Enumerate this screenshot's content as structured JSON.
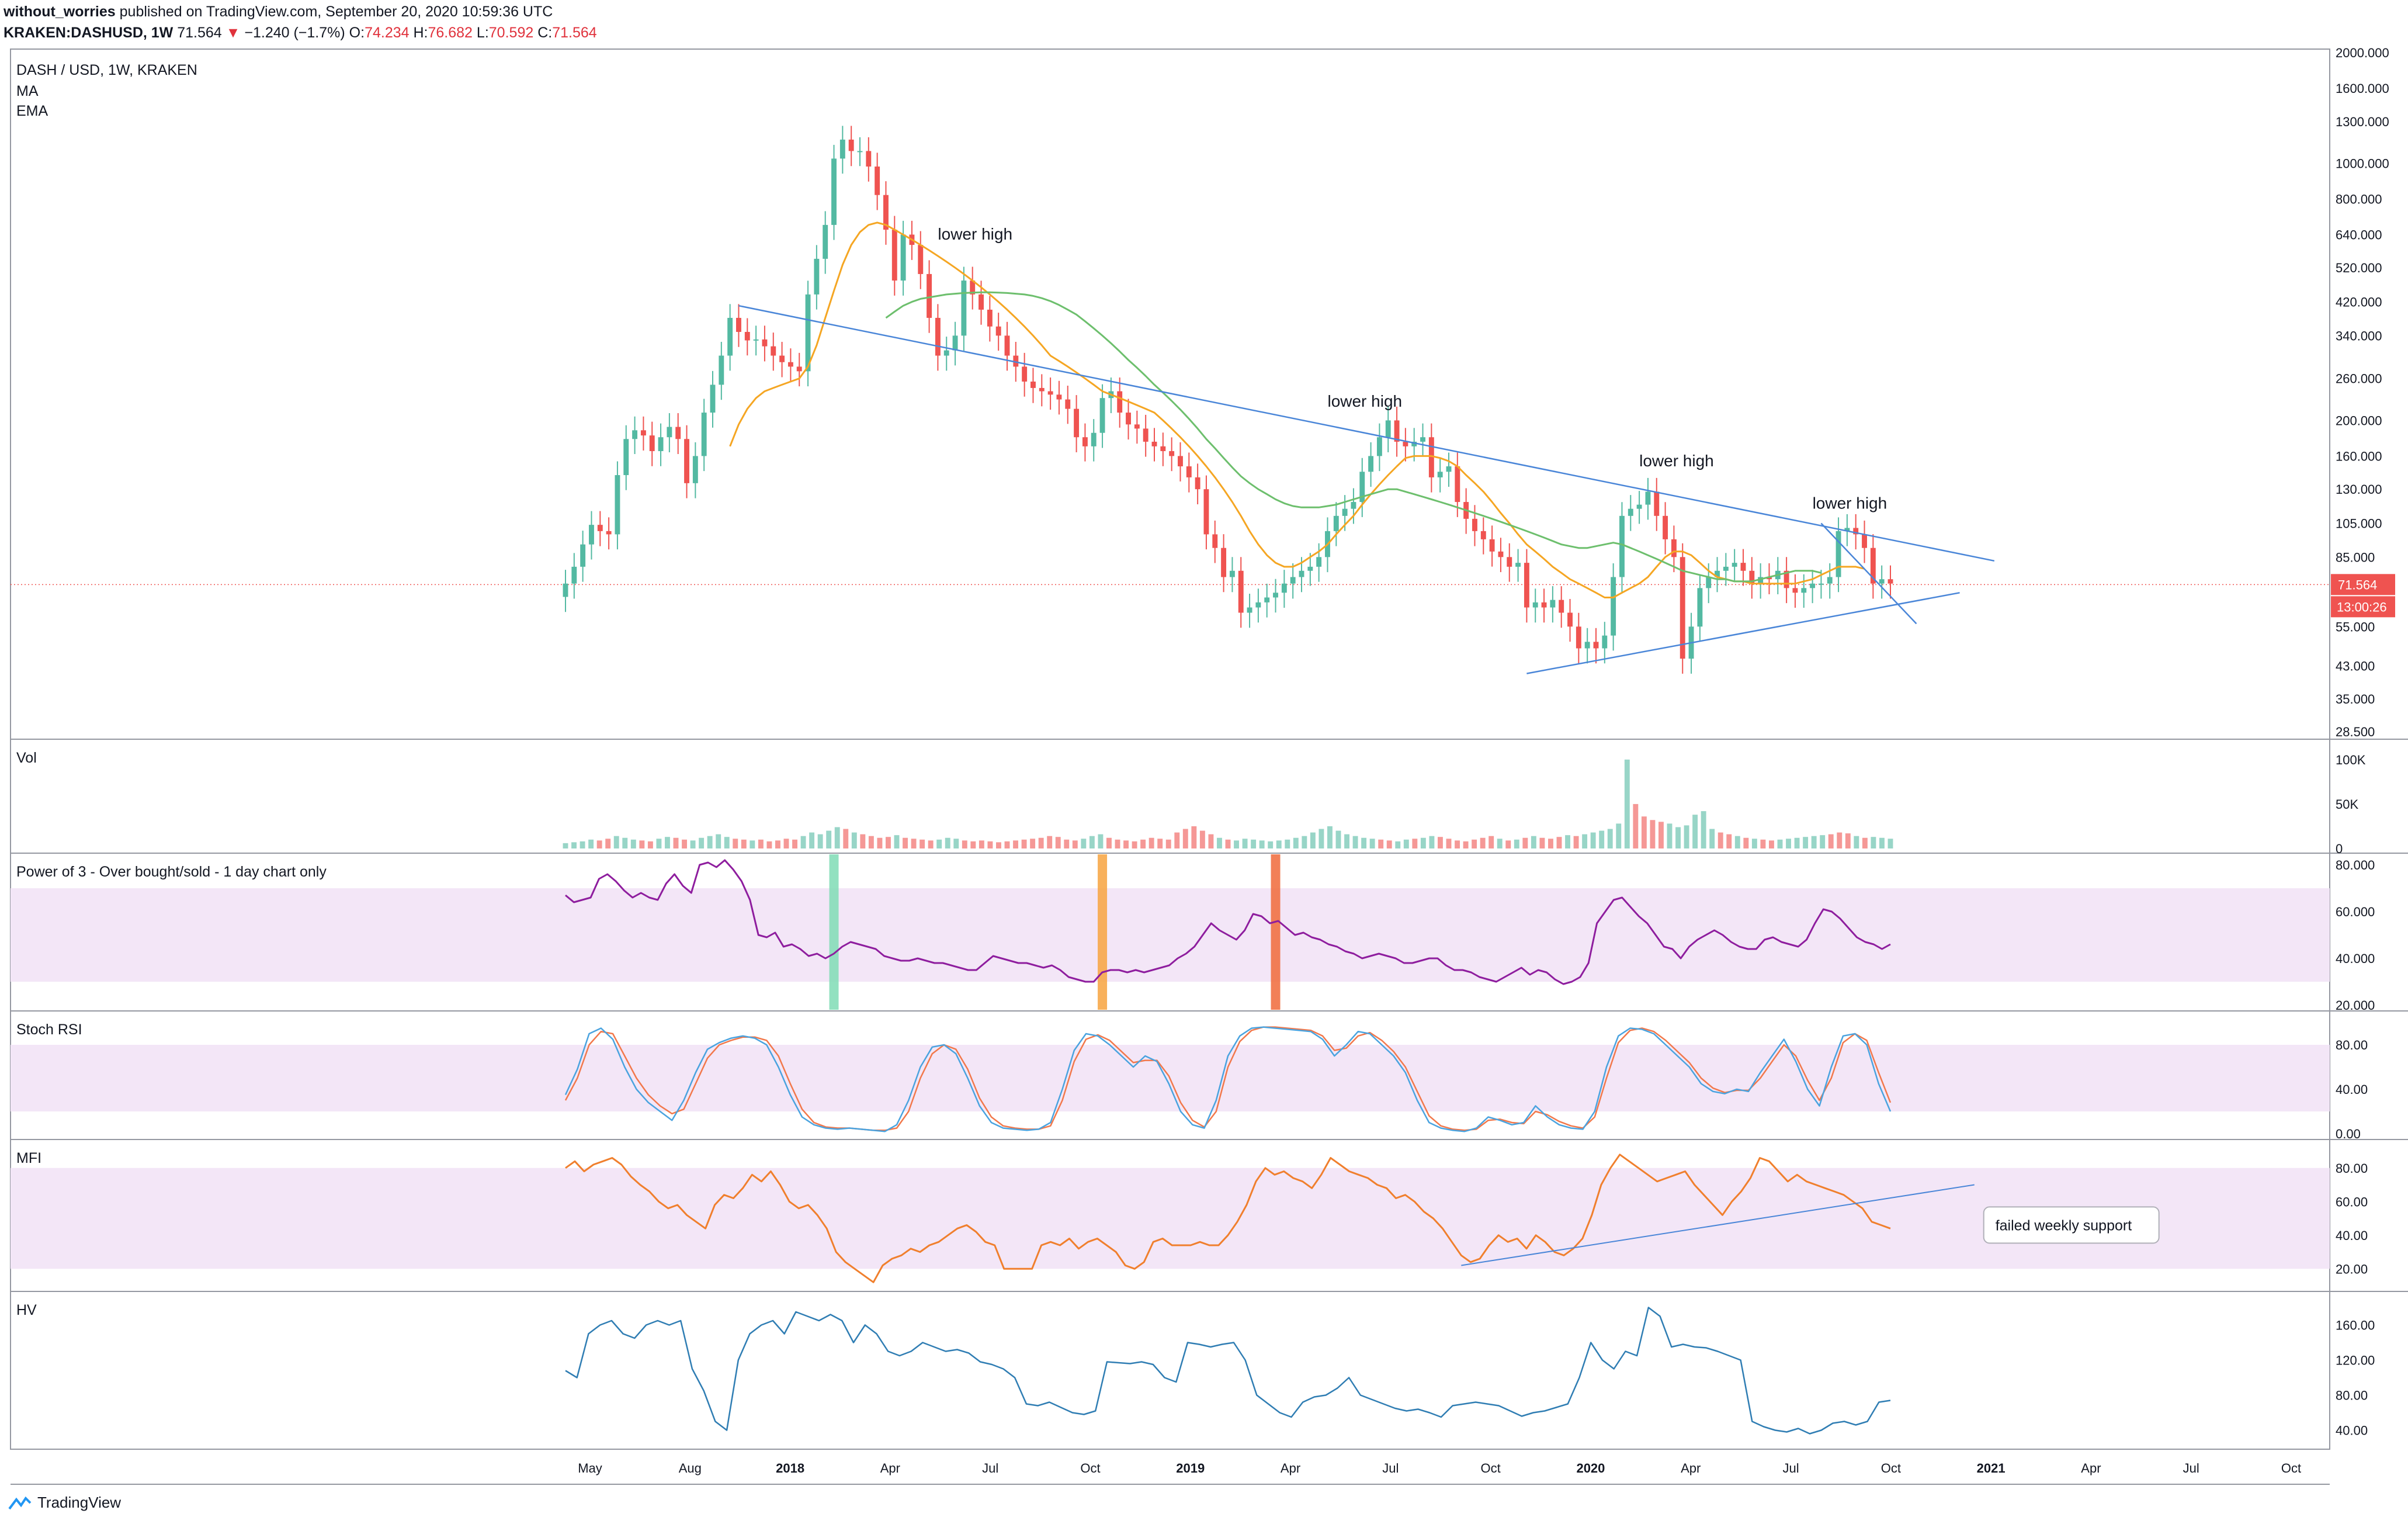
{
  "header": {
    "author": "without_worries",
    "published": "published on TradingView.com, September 20, 2020 10:59:36 UTC",
    "symbol": "KRAKEN:DASHUSD, 1W",
    "last": "71.564",
    "change": "−1.240 (−1.7%)",
    "o_label": "O:",
    "o": "74.234",
    "h_label": "H:",
    "h": "76.682",
    "l_label": "L:",
    "l": "70.592",
    "c_label": "C:",
    "c": "71.564"
  },
  "footer": {
    "brand": "TradingView",
    "logo_icon": "tradingview-logo-icon"
  },
  "colors": {
    "up": "#53b9a2",
    "down": "#ef5350",
    "ma": "#f5a623",
    "ema": "#6dbf6d",
    "trend": "#4a86d8",
    "power": "#8e1d9e",
    "stoch_k": "#4aa3df",
    "stoch_d": "#f2784b",
    "mfi": "#f07f2d",
    "hv": "#2f7db3",
    "band": "#f3e6f7",
    "price_tag": "#ef5350"
  },
  "chart_data": [
    {
      "type": "candlestick",
      "title": "DASH / USD, 1W, KRAKEN",
      "legend": [
        "MA",
        "EMA"
      ],
      "scale": "log",
      "y_ticks": [
        "2000.000",
        "1600.000",
        "1300.000",
        "1000.000",
        "800.000",
        "640.000",
        "520.000",
        "420.000",
        "340.000",
        "260.000",
        "200.000",
        "160.000",
        "130.000",
        "105.000",
        "85.000",
        "55.000",
        "43.000",
        "35.000",
        "28.500"
      ],
      "x_ticks": [
        "May",
        "Aug",
        "2018",
        "Apr",
        "Jul",
        "Oct",
        "2019",
        "Apr",
        "Jul",
        "Oct",
        "2020",
        "Apr",
        "Jul",
        "Oct",
        "2021",
        "Apr",
        "Jul",
        "Oct"
      ],
      "last_price": "71.564",
      "countdown": "13:00:26",
      "candles_close": [
        72,
        80,
        92,
        104,
        100,
        98,
        142,
        178,
        188,
        182,
        165,
        180,
        192,
        178,
        135,
        160,
        210,
        250,
        300,
        380,
        348,
        330,
        332,
        318,
        300,
        288,
        280,
        272,
        440,
        550,
        680,
        1030,
        1160,
        1080,
        1080,
        980,
        820,
        660,
        480,
        640,
        600,
        500,
        380,
        300,
        310,
        340,
        480,
        440,
        400,
        360,
        340,
        300,
        280,
        255,
        245,
        240,
        235,
        228,
        215,
        180,
        170,
        185,
        230,
        240,
        210,
        195,
        190,
        175,
        170,
        165,
        160,
        150,
        140,
        130,
        98,
        90,
        75,
        78,
        60,
        62,
        64,
        66,
        68,
        72,
        75,
        78,
        80,
        85,
        100,
        110,
        115,
        120,
        145,
        160,
        180,
        200,
        175,
        170,
        175,
        180,
        140,
        145,
        150,
        120,
        108,
        100,
        95,
        88,
        85,
        80,
        82,
        62,
        64,
        62,
        65,
        60,
        55,
        48,
        50,
        48,
        52,
        75,
        110,
        115,
        118,
        128,
        110,
        95,
        85,
        45,
        55,
        70,
        75,
        78,
        80,
        82,
        78,
        72,
        75,
        74,
        78,
        70,
        68,
        70,
        72,
        72,
        75,
        100,
        102,
        98,
        90,
        72,
        74,
        72
      ],
      "ma_values": [
        null,
        null,
        null,
        null,
        null,
        null,
        null,
        null,
        null,
        null,
        null,
        null,
        null,
        null,
        null,
        null,
        null,
        null,
        null,
        170,
        195,
        215,
        230,
        240,
        245,
        250,
        255,
        260,
        280,
        320,
        380,
        450,
        530,
        600,
        650,
        680,
        690,
        680,
        660,
        640,
        620,
        600,
        580,
        560,
        540,
        520,
        500,
        480,
        460,
        440,
        420,
        400,
        380,
        360,
        340,
        320,
        300,
        290,
        280,
        270,
        260,
        250,
        240,
        235,
        230,
        225,
        220,
        215,
        210,
        200,
        190,
        180,
        170,
        160,
        150,
        140,
        130,
        120,
        110,
        100,
        92,
        86,
        82,
        80,
        80,
        82,
        85,
        88,
        92,
        98,
        104,
        110,
        118,
        126,
        134,
        142,
        150,
        158,
        160,
        160,
        160,
        158,
        155,
        150,
        142,
        135,
        128,
        120,
        112,
        105,
        98,
        92,
        88,
        84,
        80,
        77,
        74,
        72,
        70,
        68,
        66,
        66,
        68,
        70,
        72,
        75,
        80,
        85,
        88,
        88,
        86,
        82,
        78,
        75,
        74,
        73,
        73,
        72,
        72,
        72,
        72,
        72,
        72,
        73,
        74,
        76,
        78,
        80,
        80,
        80,
        79
      ],
      "ema_values": [
        null,
        null,
        null,
        null,
        null,
        null,
        null,
        null,
        null,
        null,
        null,
        null,
        null,
        null,
        null,
        null,
        null,
        null,
        null,
        null,
        null,
        null,
        null,
        null,
        null,
        null,
        null,
        null,
        null,
        null,
        null,
        null,
        null,
        null,
        null,
        null,
        null,
        380,
        395,
        410,
        420,
        428,
        432,
        436,
        440,
        442,
        444,
        445,
        446,
        446,
        445,
        444,
        442,
        440,
        436,
        430,
        422,
        412,
        400,
        388,
        372,
        356,
        340,
        324,
        308,
        292,
        278,
        264,
        250,
        238,
        226,
        214,
        202,
        190,
        178,
        168,
        158,
        149,
        141,
        135,
        130,
        126,
        122,
        119,
        117,
        116,
        116,
        116,
        117,
        118,
        120,
        122,
        124,
        126,
        128,
        130,
        130,
        128,
        126,
        124,
        122,
        120,
        118,
        116,
        114,
        112,
        110,
        108,
        106,
        104,
        102,
        100,
        98,
        96,
        94,
        92,
        91,
        90,
        90,
        91,
        92,
        93,
        92,
        90,
        88,
        86,
        84,
        82,
        80,
        78,
        77,
        76,
        75,
        74,
        74,
        73,
        73,
        73,
        74,
        75,
        76,
        77,
        78,
        78,
        78,
        77
      ]
    },
    {
      "type": "bar",
      "title": "Vol",
      "y_ticks": [
        "100K",
        "50K",
        "0"
      ],
      "values": [
        6,
        7,
        8,
        10,
        9,
        11,
        14,
        12,
        10,
        9,
        8,
        11,
        13,
        12,
        10,
        9,
        12,
        14,
        16,
        13,
        11,
        10,
        9,
        10,
        8,
        9,
        11,
        10,
        14,
        18,
        16,
        20,
        24,
        22,
        18,
        16,
        14,
        12,
        13,
        15,
        12,
        11,
        10,
        9,
        10,
        12,
        11,
        9,
        8,
        9,
        8,
        7,
        8,
        9,
        10,
        11,
        12,
        14,
        13,
        10,
        9,
        11,
        14,
        16,
        12,
        10,
        9,
        8,
        10,
        12,
        11,
        10,
        18,
        22,
        25,
        20,
        16,
        12,
        10,
        9,
        11,
        10,
        9,
        8,
        9,
        10,
        12,
        14,
        18,
        22,
        25,
        20,
        16,
        14,
        12,
        11,
        10,
        9,
        8,
        10,
        11,
        12,
        14,
        13,
        11,
        9,
        8,
        10,
        12,
        14,
        11,
        9,
        10,
        12,
        14,
        12,
        11,
        13,
        15,
        14,
        16,
        18,
        20,
        22,
        28,
        100,
        50,
        36,
        32,
        30,
        28,
        24,
        26,
        38,
        42,
        22,
        18,
        16,
        14,
        12,
        11,
        10,
        9,
        10,
        11,
        12,
        13,
        14,
        15,
        16,
        18,
        17,
        14,
        12,
        13,
        12,
        11
      ]
    },
    {
      "type": "line",
      "title": "Power of 3 - Over bought/sold - 1 day chart only",
      "y_ticks": [
        "80.000",
        "60.000",
        "40.000",
        "20.000"
      ],
      "ylim": [
        20,
        80
      ],
      "values": [
        67,
        64,
        65,
        66,
        74,
        76,
        73,
        69,
        66,
        68,
        66,
        65,
        72,
        76,
        71,
        68,
        80,
        81,
        79,
        82,
        78,
        73,
        65,
        50,
        49,
        51,
        45,
        46,
        44,
        41,
        42,
        40,
        42,
        45,
        47,
        46,
        45,
        44,
        41,
        40,
        39,
        39,
        40,
        39,
        38,
        38,
        37,
        36,
        35,
        35,
        38,
        41,
        40,
        39,
        38,
        38,
        37,
        36,
        37,
        35,
        32,
        31,
        30,
        30,
        34,
        35,
        35,
        34,
        35,
        34,
        35,
        36,
        37,
        40,
        42,
        45,
        50,
        55,
        52,
        50,
        48,
        52,
        59,
        58,
        55,
        56,
        53,
        50,
        51,
        49,
        48,
        46,
        45,
        43,
        42,
        40,
        41,
        42,
        41,
        40,
        38,
        38,
        39,
        40,
        40,
        37,
        35,
        35,
        34,
        32,
        31,
        30,
        32,
        34,
        36,
        33,
        35,
        34,
        31,
        29,
        30,
        32,
        38,
        55,
        60,
        65,
        66,
        62,
        58,
        55,
        50,
        45,
        44,
        40,
        45,
        48,
        50,
        52,
        50,
        47,
        45,
        44,
        44,
        48,
        49,
        47,
        46,
        45,
        48,
        55,
        61,
        60,
        57,
        53,
        49,
        47,
        46,
        44,
        46
      ]
    },
    {
      "type": "line",
      "title": "Stoch RSI",
      "y_ticks": [
        "80.00",
        "40.00",
        "0.00"
      ],
      "ylim": [
        0,
        100
      ],
      "series": [
        {
          "values": [
            35,
            58,
            90,
            95,
            85,
            60,
            40,
            28,
            20,
            12,
            30,
            55,
            76,
            82,
            86,
            88,
            86,
            80,
            60,
            35,
            15,
            8,
            5,
            4,
            5,
            4,
            3,
            2,
            8,
            30,
            60,
            78,
            80,
            72,
            50,
            25,
            10,
            5,
            4,
            3,
            4,
            10,
            40,
            75,
            90,
            88,
            80,
            70,
            60,
            70,
            65,
            45,
            20,
            8,
            5,
            30,
            70,
            88,
            95,
            96,
            95,
            94,
            93,
            92,
            85,
            70,
            80,
            92,
            90,
            80,
            70,
            55,
            30,
            10,
            5,
            3,
            2,
            5,
            15,
            12,
            8,
            10,
            25,
            15,
            8,
            5,
            4,
            20,
            60,
            88,
            95,
            94,
            90,
            80,
            70,
            60,
            45,
            38,
            36,
            40,
            38,
            55,
            70,
            85,
            65,
            40,
            25,
            60,
            88,
            90,
            80,
            45,
            20
          ]
        },
        {
          "values": [
            30,
            50,
            80,
            92,
            90,
            70,
            50,
            35,
            25,
            18,
            22,
            45,
            68,
            80,
            84,
            87,
            87,
            84,
            70,
            45,
            22,
            10,
            6,
            5,
            5,
            4,
            3,
            3,
            5,
            20,
            50,
            72,
            80,
            76,
            58,
            32,
            15,
            7,
            5,
            4,
            4,
            7,
            30,
            65,
            85,
            89,
            84,
            74,
            64,
            66,
            66,
            52,
            28,
            12,
            6,
            20,
            60,
            83,
            93,
            96,
            96,
            95,
            94,
            93,
            88,
            75,
            77,
            88,
            91,
            84,
            74,
            60,
            38,
            16,
            7,
            4,
            3,
            4,
            12,
            13,
            10,
            9,
            20,
            17,
            11,
            7,
            5,
            15,
            50,
            82,
            93,
            95,
            92,
            84,
            74,
            64,
            50,
            41,
            37,
            39,
            39,
            50,
            65,
            80,
            70,
            48,
            30,
            50,
            82,
            90,
            84,
            55,
            28
          ]
        }
      ]
    },
    {
      "type": "line",
      "title": "MFI",
      "y_ticks": [
        "80.00",
        "60.00",
        "40.00",
        "20.00"
      ],
      "ylim": [
        10,
        90
      ],
      "values": [
        80,
        84,
        78,
        82,
        84,
        86,
        82,
        75,
        70,
        66,
        60,
        56,
        58,
        52,
        48,
        44,
        58,
        64,
        62,
        68,
        76,
        72,
        78,
        70,
        60,
        56,
        58,
        52,
        44,
        30,
        24,
        20,
        16,
        12,
        22,
        26,
        28,
        32,
        30,
        34,
        36,
        40,
        44,
        46,
        42,
        36,
        34,
        20,
        20,
        20,
        20,
        34,
        36,
        34,
        38,
        32,
        36,
        38,
        34,
        30,
        22,
        20,
        24,
        36,
        38,
        34,
        34,
        34,
        36,
        34,
        34,
        40,
        48,
        58,
        72,
        80,
        76,
        78,
        74,
        72,
        68,
        76,
        86,
        82,
        78,
        76,
        74,
        70,
        68,
        62,
        64,
        60,
        54,
        50,
        44,
        36,
        28,
        24,
        26,
        34,
        40,
        36,
        38,
        32,
        40,
        36,
        30,
        28,
        32,
        38,
        52,
        70,
        80,
        88,
        84,
        80,
        76,
        72,
        74,
        76,
        78,
        70,
        64,
        58,
        52,
        60,
        66,
        74,
        86,
        84,
        78,
        72,
        76,
        72,
        70,
        68,
        66,
        64,
        60,
        56,
        48,
        46,
        44
      ]
    },
    {
      "type": "line",
      "title": "HV",
      "y_ticks": [
        "160.00",
        "120.00",
        "80.00",
        "40.00"
      ],
      "ylim": [
        25,
        185
      ],
      "values": [
        108,
        100,
        150,
        160,
        165,
        150,
        145,
        160,
        165,
        160,
        165,
        110,
        85,
        50,
        40,
        120,
        150,
        160,
        165,
        150,
        175,
        170,
        165,
        172,
        165,
        140,
        160,
        150,
        130,
        125,
        130,
        140,
        135,
        130,
        132,
        128,
        118,
        115,
        110,
        100,
        70,
        68,
        72,
        66,
        60,
        58,
        62,
        118,
        117,
        116,
        118,
        115,
        100,
        95,
        140,
        138,
        135,
        138,
        140,
        120,
        80,
        70,
        60,
        55,
        72,
        78,
        80,
        88,
        100,
        80,
        75,
        70,
        65,
        62,
        64,
        60,
        55,
        68,
        70,
        72,
        70,
        68,
        62,
        56,
        60,
        62,
        66,
        70,
        100,
        140,
        120,
        110,
        130,
        125,
        180,
        170,
        135,
        138,
        135,
        134,
        130,
        125,
        120,
        50,
        44,
        40,
        38,
        42,
        36,
        40,
        48,
        50,
        46,
        50,
        72,
        74
      ]
    }
  ],
  "annotations": {
    "lower_high_1": "lower high",
    "lower_high_2": "lower high",
    "lower_high_3": "lower high",
    "lower_high_4": "lower high",
    "mfi_note": "failed weekly support"
  }
}
